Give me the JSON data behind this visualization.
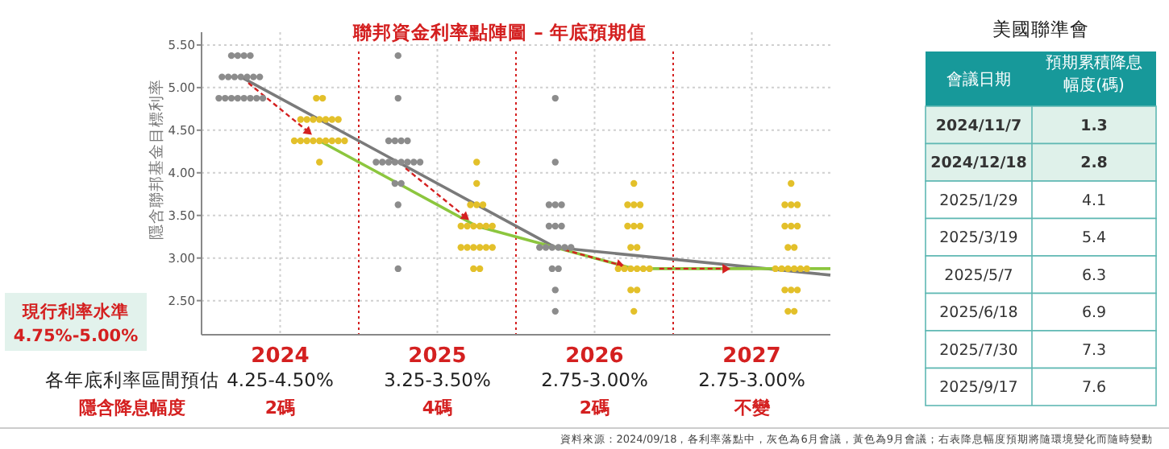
{
  "chart_data": [
    {
      "type": "scatter",
      "title": "聯邦資金利率點陣圖 – 年底預期值",
      "ylabel": "隱含聯邦基金目標利率",
      "xlim": [
        2023.5,
        2027.5
      ],
      "xticks": [
        2024,
        2025,
        2026,
        2027
      ],
      "ylim": [
        2.1,
        5.65
      ],
      "yticks": [
        {
          "value": 2.5,
          "label": "2.50"
        },
        {
          "value": 3,
          "label": "3.00"
        },
        {
          "value": 3.5,
          "label": "3.50"
        },
        {
          "value": 4,
          "label": "4.00"
        },
        {
          "value": 4.5,
          "label": "4.50"
        },
        {
          "value": 5,
          "label": "5.00"
        },
        {
          "value": 5.5,
          "label": "5.50"
        }
      ],
      "grid": true,
      "marker": "circle",
      "series": [
        {
          "type": "scatter",
          "color": "#8c8c8c",
          "x": [
            2023.69,
            2023.73,
            2023.77,
            2023.81,
            2023.63,
            2023.67,
            2023.71,
            2023.75,
            2023.79,
            2023.83,
            2023.87,
            2023.61,
            2023.65,
            2023.69,
            2023.73,
            2023.77,
            2023.81,
            2023.85,
            2023.89,
            2024.75,
            2024.75,
            2024.69,
            2024.73,
            2024.77,
            2024.81,
            2024.61,
            2024.65,
            2024.69,
            2024.73,
            2024.77,
            2024.81,
            2024.85,
            2024.89,
            2024.73,
            2024.77,
            2024.75,
            2024.75,
            2025.75,
            2025.75,
            2025.71,
            2025.75,
            2025.79,
            2025.71,
            2025.75,
            2025.79,
            2025.65,
            2025.69,
            2025.73,
            2025.77,
            2025.81,
            2025.85,
            2025.73,
            2025.77,
            2025.75,
            2025.75
          ],
          "values": [
            5.375,
            5.375,
            5.375,
            5.375,
            5.125,
            5.125,
            5.125,
            5.125,
            5.125,
            5.125,
            5.125,
            4.875,
            4.875,
            4.875,
            4.875,
            4.875,
            4.875,
            4.875,
            4.875,
            5.375,
            4.875,
            4.375,
            4.375,
            4.375,
            4.375,
            4.125,
            4.125,
            4.125,
            4.125,
            4.125,
            4.125,
            4.125,
            4.125,
            3.875,
            3.875,
            3.625,
            2.875,
            4.875,
            4.125,
            3.625,
            3.625,
            3.625,
            3.375,
            3.375,
            3.375,
            3.125,
            3.125,
            3.125,
            3.125,
            3.125,
            3.125,
            2.875,
            2.875,
            2.625,
            2.375
          ]
        },
        {
          "type": "scatter",
          "color": "#e3c02a",
          "x": [
            2024.23,
            2024.27,
            2024.13,
            2024.17,
            2024.21,
            2024.25,
            2024.29,
            2024.33,
            2024.37,
            2024.09,
            2024.13,
            2024.17,
            2024.21,
            2024.25,
            2024.29,
            2024.33,
            2024.37,
            2024.41,
            2024.25,
            2025.25,
            2025.25,
            2025.21,
            2025.25,
            2025.29,
            2025.15,
            2025.19,
            2025.23,
            2025.27,
            2025.31,
            2025.35,
            2025.15,
            2025.19,
            2025.23,
            2025.27,
            2025.31,
            2025.35,
            2025.23,
            2025.27,
            2026.25,
            2026.21,
            2026.25,
            2026.29,
            2026.21,
            2026.25,
            2026.29,
            2026.23,
            2026.27,
            2026.15,
            2026.19,
            2026.23,
            2026.27,
            2026.31,
            2026.35,
            2026.23,
            2026.27,
            2026.25,
            2027.25,
            2027.21,
            2027.25,
            2027.29,
            2027.21,
            2027.25,
            2027.29,
            2027.23,
            2027.27,
            2027.15,
            2027.19,
            2027.23,
            2027.27,
            2027.31,
            2027.35,
            2027.21,
            2027.25,
            2027.29,
            2027.23,
            2027.27
          ],
          "values": [
            4.875,
            4.875,
            4.625,
            4.625,
            4.625,
            4.625,
            4.625,
            4.625,
            4.625,
            4.375,
            4.375,
            4.375,
            4.375,
            4.375,
            4.375,
            4.375,
            4.375,
            4.375,
            4.125,
            4.125,
            3.875,
            3.625,
            3.625,
            3.625,
            3.375,
            3.375,
            3.375,
            3.375,
            3.375,
            3.375,
            3.125,
            3.125,
            3.125,
            3.125,
            3.125,
            3.125,
            2.875,
            2.875,
            3.875,
            3.625,
            3.625,
            3.625,
            3.375,
            3.375,
            3.375,
            3.125,
            3.125,
            2.875,
            2.875,
            2.875,
            2.875,
            2.875,
            2.875,
            2.625,
            2.625,
            2.375,
            3.875,
            3.625,
            3.625,
            3.625,
            3.375,
            3.375,
            3.375,
            3.125,
            3.125,
            2.875,
            2.875,
            2.875,
            2.875,
            2.875,
            2.875,
            2.625,
            2.625,
            2.625,
            2.375,
            2.375
          ]
        },
        {
          "type": "line",
          "color": "#7a7a7a",
          "marker": "none",
          "x": [
            2023.75,
            2024.75,
            2025.75,
            2027.5
          ],
          "values": [
            5.125,
            4.125,
            3.125,
            2.8
          ]
        },
        {
          "type": "line",
          "color": "#8cc63e",
          "marker": "none",
          "x": [
            2024.25,
            2025.25,
            2025.75,
            2026.25,
            2027.5
          ],
          "values": [
            4.375,
            3.375,
            3.125,
            2.875,
            2.875
          ]
        }
      ],
      "ref_lines": [
        {
          "axis": "x",
          "value": 2024.5,
          "color": "#d42020",
          "line_style": "dotted"
        },
        {
          "axis": "x",
          "value": 2025.5,
          "color": "#d42020",
          "line_style": "dotted"
        },
        {
          "axis": "x",
          "value": 2026.5,
          "color": "#d42020",
          "line_style": "dotted"
        }
      ],
      "annotations": [
        "現行利率水準",
        "4.75%-5.00%",
        "各年底利率區間預估",
        "4.25-4.50%",
        "3.25-3.50%",
        "2.75-3.00%",
        "2.75-3.00%",
        "隱含降息幅度",
        "2碼",
        "4碼",
        "2碼",
        "不變",
        "資料來源：2024/09/18，各利率落點中，灰色為6月會議，黃色為9月會議；右表降息幅度預期將隨環境變化而隨時變動"
      ]
    },
    {
      "type": "other",
      "title": "美國聯準會",
      "xlabel": "會議日期",
      "ylabel": "預期累積降息幅度(碼)",
      "data_labels": true,
      "categories": [
        "2024/11/7",
        "2024/12/18",
        "2025/1/29",
        "2025/3/19",
        "2025/5/7",
        "2025/6/18",
        "2025/7/30",
        "2025/9/17"
      ],
      "values": [
        1.3,
        2.8,
        4.1,
        5.4,
        6.3,
        6.9,
        7.3,
        7.6
      ],
      "colors": [
        "#dff1ea",
        "#dff1ea",
        "#ffffff",
        "#ffffff",
        "#ffffff",
        "#ffffff",
        "#ffffff",
        "#ffffff"
      ]
    }
  ]
}
